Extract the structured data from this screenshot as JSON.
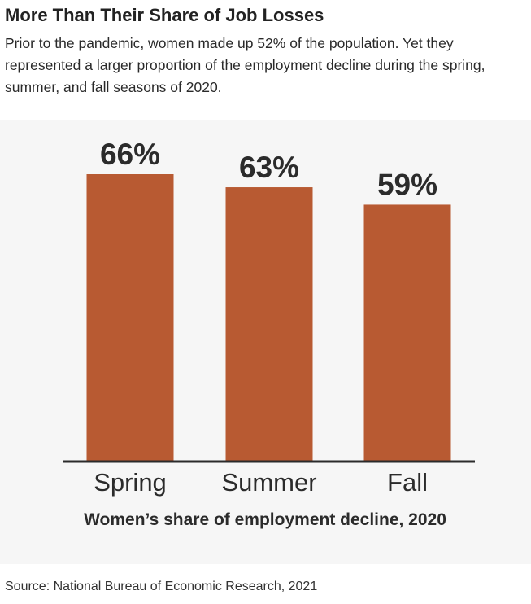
{
  "header": {
    "title": "More Than Their Share of Job Losses",
    "subtitle": "Prior to the pandemic, women made up 52% of the population. Yet they represented a larger proportion of the employment decline during the spring, summer, and fall seasons of 2020."
  },
  "chart_data": {
    "type": "bar",
    "categories": [
      "Spring",
      "Summer",
      "Fall"
    ],
    "values": [
      66,
      63,
      59
    ],
    "data_labels": [
      "66%",
      "63%",
      "59%"
    ],
    "title": "",
    "xlabel": "Women’s share of employment decline, 2020",
    "ylabel": "",
    "ylim": [
      0,
      100
    ],
    "grid": false,
    "colors": {
      "bar": "#b85a32",
      "axis": "#2b2b2b",
      "label": "#2b2b2b"
    }
  },
  "footer": {
    "source": "Source: National Bureau of Economic Research, 2021"
  }
}
